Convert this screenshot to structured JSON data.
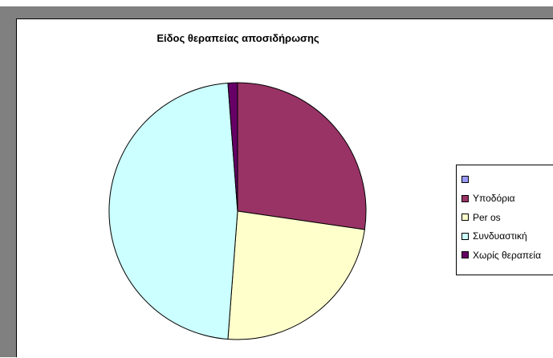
{
  "chart_data": {
    "type": "pie",
    "title": "Είδος θεραπείας αποσιδήρωσης",
    "categories": [
      "",
      "Υποδόρια",
      "Per os",
      "Συνδυαστική",
      "Χωρίς θεραπεία"
    ],
    "values": [
      0,
      27.3,
      23.9,
      47.6,
      1.2
    ],
    "colors": [
      "#9999ff",
      "#993366",
      "#ffffcc",
      "#ccffff",
      "#660066"
    ],
    "legend": "right",
    "start_angle_deg": 0,
    "direction": "clockwise"
  }
}
